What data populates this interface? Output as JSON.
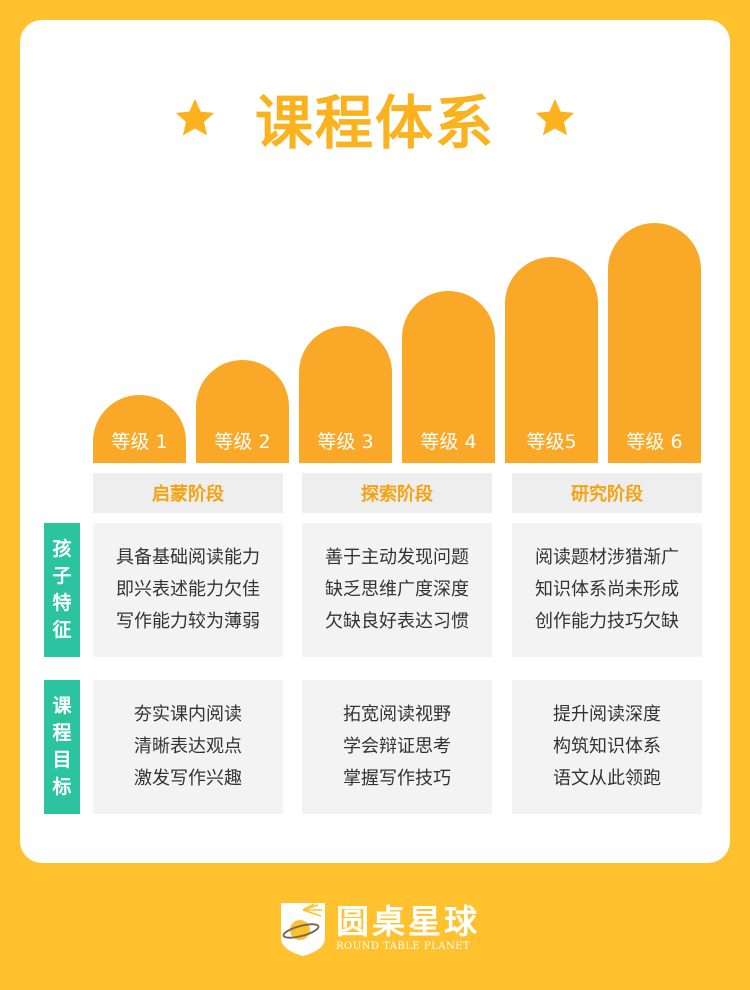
{
  "header": {
    "title": "课程体系",
    "icon_left": "star-icon",
    "icon_right": "star-icon"
  },
  "levels": [
    "等级 1",
    "等级 2",
    "等级 3",
    "等级 4",
    "等级5",
    "等级 6"
  ],
  "stages": [
    "启蒙阶段",
    "探索阶段",
    "研究阶段"
  ],
  "rows": {
    "traits": {
      "label": [
        "孩",
        "子",
        "特",
        "征"
      ],
      "cells": [
        [
          "具备基础阅读能力",
          "即兴表述能力欠佳",
          "写作能力较为薄弱"
        ],
        [
          "善于主动发现问题",
          "缺乏思维广度深度",
          "欠缺良好表达习惯"
        ],
        [
          "阅读题材涉猎渐广",
          "知识体系尚未形成",
          "创作能力技巧欠缺"
        ]
      ]
    },
    "goals": {
      "label": [
        "课",
        "程",
        "目",
        "标"
      ],
      "cells": [
        [
          "夯实课内阅读",
          "清晰表达观点",
          "激发写作兴趣"
        ],
        [
          "拓宽阅读视野",
          "学会辩证思考",
          "掌握写作技巧"
        ],
        [
          "提升阅读深度",
          "构筑知识体系",
          "语文从此领跑"
        ]
      ]
    }
  },
  "brand": {
    "name_cn": "圆桌星球",
    "name_en": "ROUND TABLE PLANET",
    "icon": "planet-logo-icon"
  },
  "colors": {
    "background": "#FFC12E",
    "accent": "#FBB21F",
    "bar": "#F9A827",
    "teal": "#2CC3A0",
    "cell": "#F3F3F3"
  }
}
